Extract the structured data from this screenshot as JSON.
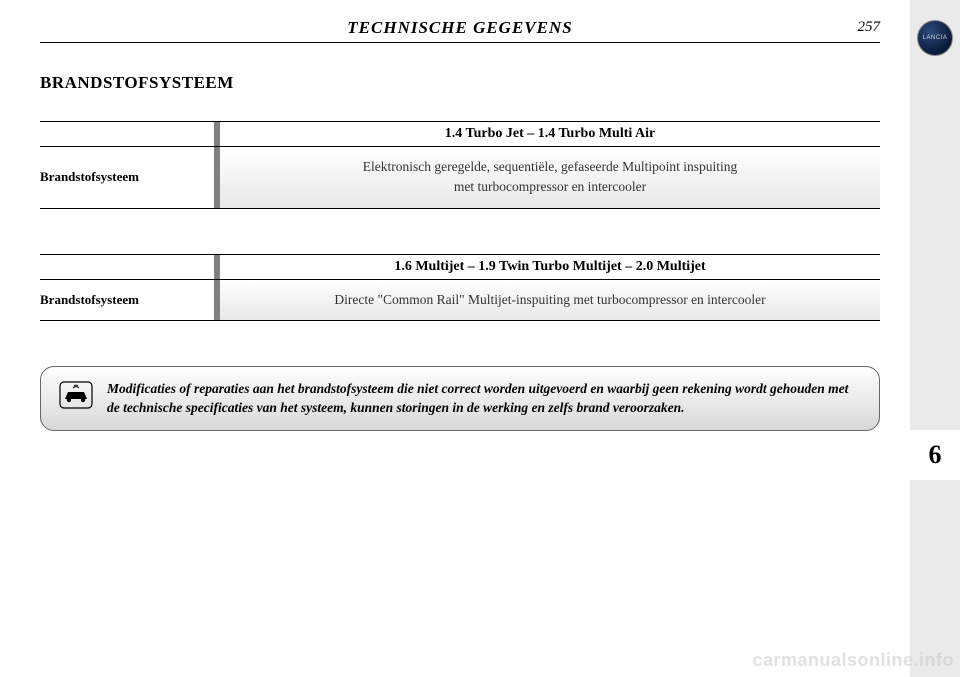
{
  "header": {
    "title": "TECHNISCHE GEGEVENS",
    "page_number": "257"
  },
  "section_title": "BRANDSTOFSYSTEEM",
  "tables": [
    {
      "column_header": "1.4 Turbo Jet – 1.4 Turbo Multi Air",
      "row_label": "Brandstofsysteem",
      "row_value": "Elektronisch geregelde, sequentiële, gefaseerde Multipoint inspuiting\nmet turbocompressor en intercooler"
    },
    {
      "column_header": "1.6 Multijet – 1.9 Twin Turbo Multijet – 2.0 Multijet",
      "row_label": "Brandstofsysteem",
      "row_value": "Directe \"Common Rail\" Multijet-inspuiting met turbocompressor en intercooler"
    }
  ],
  "warning": {
    "text": "Modificaties of reparaties aan het brandstofsysteem die niet correct worden uitgevoerd en waarbij geen rekening wordt gehouden met de technische specificaties van het systeem, kunnen storingen in de werking en zelfs brand veroorzaken."
  },
  "sidebar": {
    "brand": "LANCIA",
    "chapter_number": "6"
  },
  "watermark": "carmanualsonline.info",
  "colors": {
    "strip_bg": "#eaeaea",
    "logo_dark": "#0a1a3a",
    "divider_gray": "#808080"
  }
}
